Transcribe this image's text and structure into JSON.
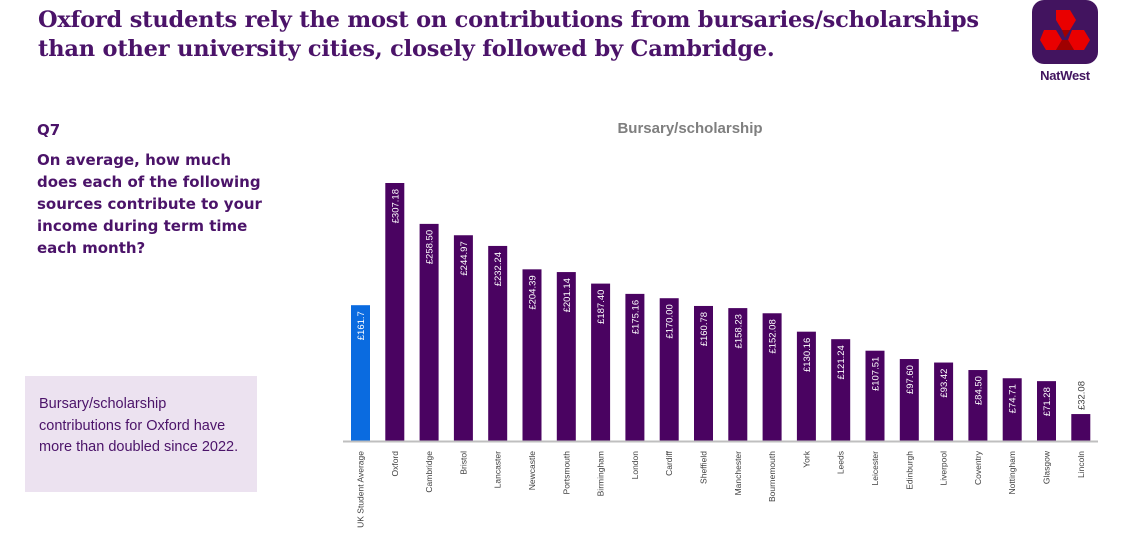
{
  "headline": "Oxford students rely the most on contributions from bursaries/scholarships than other university cities, closely followed by Cambridge.",
  "logo": {
    "icon": "natwest-logo-icon",
    "text": "NatWest",
    "tile_color": "#42145f",
    "mark_color": "#e90000"
  },
  "question": {
    "number": "Q7",
    "text": "On average, how much does each of the following sources contribute to your income during term time each month?"
  },
  "note": "Bursary/scholarship contributions for Oxford have more than doubled since 2022.",
  "colors": {
    "average_bar": "#0a6be0",
    "city_bar": "#4a0361",
    "axis": "#bfbfbf",
    "text_purple": "#4b1369"
  },
  "chart_data": {
    "type": "bar",
    "title": "Bursary/scholarship",
    "xlabel": "",
    "ylabel": "",
    "ylim": [
      0,
      320
    ],
    "grid": false,
    "legend": "none",
    "categories": [
      "UK Student Average",
      "Oxford",
      "Cambridge",
      "Bristol",
      "Lancaster",
      "Newcastle",
      "Portsmouth",
      "Birmingham",
      "London",
      "Cardiff",
      "Sheffield",
      "Manchester",
      "Bournemouth",
      "York",
      "Leeds",
      "Leicester",
      "Edinburgh",
      "Liverpool",
      "Coventry",
      "Nottingham",
      "Glasgow",
      "Lincoln"
    ],
    "values": [
      161.7,
      307.18,
      258.5,
      244.97,
      232.24,
      204.39,
      201.14,
      187.4,
      175.16,
      170.0,
      160.78,
      158.23,
      152.08,
      130.16,
      121.24,
      107.51,
      97.6,
      93.42,
      84.5,
      74.71,
      71.28,
      32.08
    ],
    "data_labels": [
      "£161.7",
      "£307.18",
      "£258.50",
      "£244.97",
      "£232.24",
      "£204.39",
      "£201.14",
      "£187.40",
      "£175.16",
      "£170.00",
      "£160.78",
      "£158.23",
      "£152.08",
      "£130.16",
      "£121.24",
      "£107.51",
      "£97.60",
      "£93.42",
      "£84.50",
      "£74.71",
      "£71.28",
      "£32.08"
    ],
    "highlight_index": 0
  }
}
